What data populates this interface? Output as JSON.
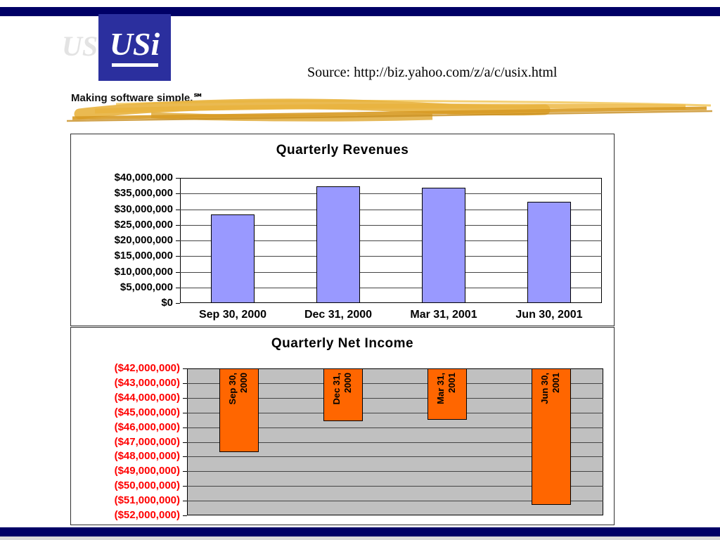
{
  "page": {
    "colors": {
      "navy_bar": "#000066",
      "logo_blue": "#2B2F9E",
      "gold": "#E0A434",
      "revenue_bar": "#9999FF",
      "net_income_bar": "#FF6600",
      "net_income_axis_red": "#FF0000",
      "plot_gray": "#C0C0C0"
    },
    "logo": {
      "text": "USi",
      "tagline": "Making software simple.℠"
    },
    "source_text": "Source: http://biz.yahoo.com/z/a/c/usix.html"
  },
  "chart_data": [
    {
      "type": "bar",
      "title": "Quarterly Revenues",
      "categories": [
        "Sep 30, 2000",
        "Dec 31, 2000",
        "Mar 31, 2001",
        "Jun 30, 2001"
      ],
      "values": [
        28300000,
        37200000,
        36800000,
        32300000
      ],
      "ylim": [
        0,
        40000000
      ],
      "ytick_interval": 5000000,
      "ytick_labels": [
        "$40,000,000",
        "$35,000,000",
        "$30,000,000",
        "$25,000,000",
        "$20,000,000",
        "$15,000,000",
        "$10,000,000",
        "$5,000,000",
        "$0"
      ],
      "bar_color": "#9999FF",
      "plot_bg": "#FFFFFF",
      "grid": true,
      "legend": "none"
    },
    {
      "type": "bar",
      "title": "Quarterly Net Income",
      "categories": [
        "Sep 30, 2000",
        "Dec 31, 2000",
        "Mar 31, 2001",
        "Jun 30, 2001"
      ],
      "values": [
        -47700000,
        -45600000,
        -45500000,
        -51300000
      ],
      "ylim": [
        -52000000,
        -42000000
      ],
      "ytick_interval": 1000000,
      "ytick_labels": [
        "($42,000,000)",
        "($43,000,000)",
        "($44,000,000)",
        "($45,000,000)",
        "($46,000,000)",
        "($47,000,000)",
        "($48,000,000)",
        "($49,000,000)",
        "($50,000,000)",
        "($51,000,000)",
        "($52,000,000)"
      ],
      "bar_color": "#FF6600",
      "plot_bg": "#C0C0C0",
      "tick_color": "#FF0000",
      "grid": true,
      "legend": "none"
    }
  ]
}
